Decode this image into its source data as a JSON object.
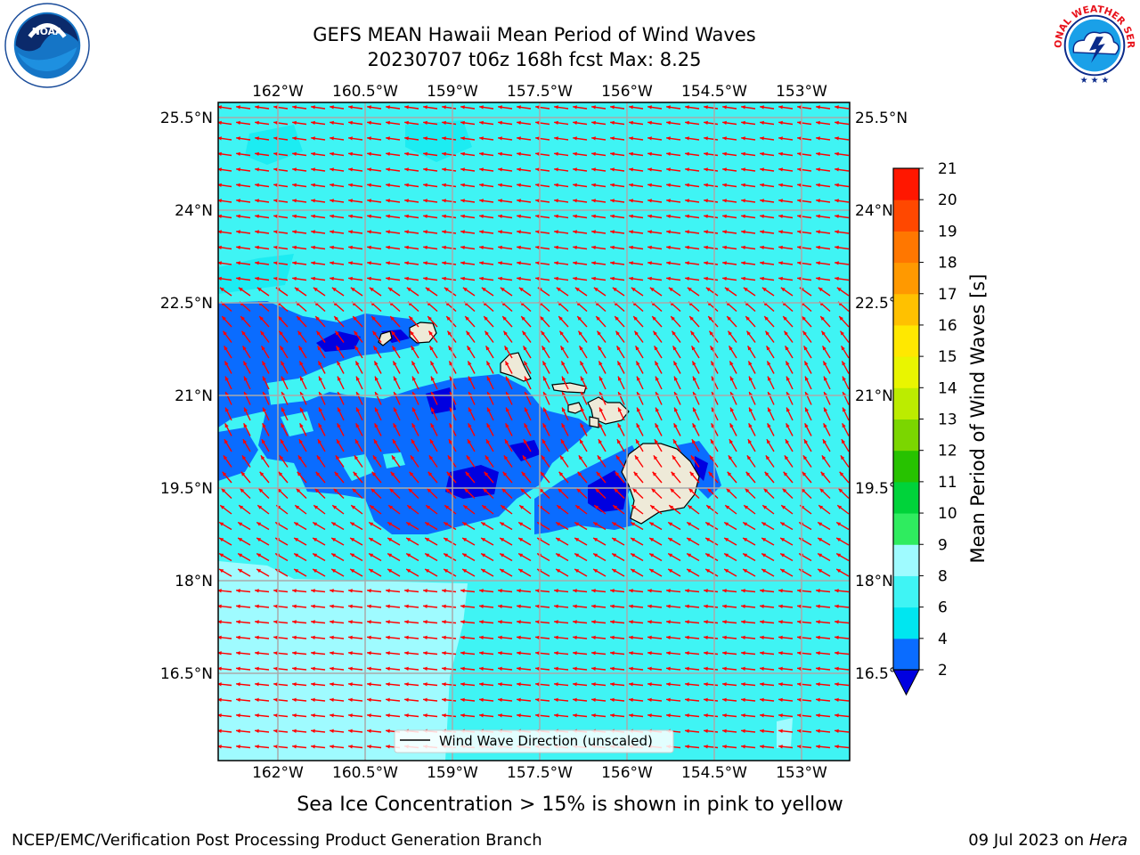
{
  "title": {
    "line1": "GEFS MEAN Hawaii Mean Period of Wind Waves",
    "line2": "20230707 t06z 168h fcst   Max: 8.25"
  },
  "logos": {
    "left": {
      "icon": "noaa-logo",
      "text": "NOAA"
    },
    "right": {
      "icon": "nws-logo",
      "text": "NATIONAL WEATHER SERVICE"
    }
  },
  "map": {
    "lon_ticks": [
      "162°W",
      "160.5°W",
      "159°W",
      "157.5°W",
      "156°W",
      "154.5°W",
      "153°W"
    ],
    "lat_ticks": [
      "25.5°N",
      "24°N",
      "22.5°N",
      "21°N",
      "19.5°N",
      "18°N",
      "16.5°N"
    ],
    "lon_values": [
      -162,
      -160.5,
      -159,
      -157.5,
      -156,
      -154.5,
      -153
    ],
    "lat_values": [
      25.5,
      24,
      22.5,
      21,
      19.5,
      18,
      16.5
    ],
    "lon_range": [
      -163,
      -152.6
    ],
    "lat_range": [
      15,
      25.7
    ],
    "grid": true,
    "legend_label": "Wind Wave Direction (unscaled)",
    "vector_color": "#ff0000",
    "islands": [
      "Niihau",
      "Kauai",
      "Oahu",
      "Molokai",
      "Lanai",
      "Maui",
      "Kahoolawe",
      "Hawaii"
    ]
  },
  "colorbar": {
    "label": "Mean Period of Wind Waves [s]",
    "ticks": [
      "2",
      "4",
      "6",
      "8",
      "9",
      "10",
      "11",
      "12",
      "13",
      "14",
      "15",
      "16",
      "17",
      "18",
      "19",
      "20",
      "21"
    ],
    "colors": [
      "#0a6cff",
      "#00e6f0",
      "#3ff4f4",
      "#9ffbff",
      "#2fec5f",
      "#00d33a",
      "#27c200",
      "#7bd600",
      "#bcec00",
      "#e9f500",
      "#ffe800",
      "#ffc100",
      "#ff9900",
      "#ff7700",
      "#ff4800",
      "#ff1700"
    ],
    "under_color": "#0000e0"
  },
  "footer": {
    "subtitle": "Sea Ice Concentration > 15% is shown in pink to yellow",
    "credit": "NCEP/EMC/Verification Post Processing Product Generation Branch",
    "date": "09 Jul 2023 on ",
    "machine": "Hera"
  }
}
